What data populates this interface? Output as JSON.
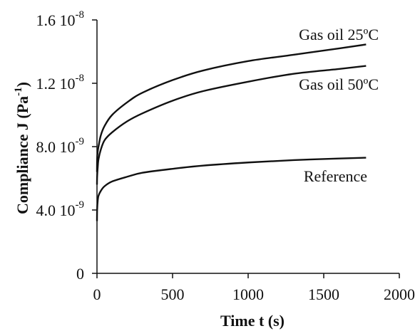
{
  "chart_data": {
    "type": "line",
    "title": "",
    "xlabel": "Time t (s)",
    "ylabel": "Compliance J (Pa-1)",
    "ylabel_parts": {
      "main": "Compliance J (Pa",
      "sup": "-1",
      "close": ")"
    },
    "xlim": [
      0,
      2000
    ],
    "ylim": [
      0,
      1.6e-08
    ],
    "x_ticks": [
      {
        "value": 0,
        "label": "0"
      },
      {
        "value": 500,
        "label": "500"
      },
      {
        "value": 1000,
        "label": "1000"
      },
      {
        "value": 1500,
        "label": "1500"
      },
      {
        "value": 2000,
        "label": "2000"
      }
    ],
    "y_ticks": [
      {
        "value": 0,
        "mant": "0",
        "exp": ""
      },
      {
        "value": 4e-09,
        "mant": "4.0 10",
        "exp": "-9"
      },
      {
        "value": 8e-09,
        "mant": "8.0 10",
        "exp": "-9"
      },
      {
        "value": 1.2e-08,
        "mant": "1.2 10",
        "exp": "-8"
      },
      {
        "value": 1.6e-08,
        "mant": "1.6 10",
        "exp": "-8"
      }
    ],
    "grid": false,
    "legend": "none",
    "series": [
      {
        "name": "Gas oil 25ºC",
        "x": [
          0,
          1,
          5,
          10,
          25,
          50,
          100,
          200,
          300,
          500,
          700,
          1000,
          1300,
          1600,
          1780
        ],
        "values": [
          6.4e-09,
          7.2e-09,
          7.7e-09,
          8e-09,
          8.7e-09,
          9.3e-09,
          1e-08,
          1.08e-08,
          1.14e-08,
          1.22e-08,
          1.28e-08,
          1.34e-08,
          1.38e-08,
          1.42e-08,
          1.445e-08
        ]
      },
      {
        "name": "Gas oil 50ºC",
        "x": [
          0,
          1,
          5,
          10,
          25,
          50,
          100,
          200,
          300,
          500,
          700,
          1000,
          1300,
          1600,
          1780
        ],
        "values": [
          5.6e-09,
          6.1e-09,
          6.7e-09,
          7.2e-09,
          7.8e-09,
          8.4e-09,
          8.9e-09,
          9.6e-09,
          1.01e-08,
          1.09e-08,
          1.15e-08,
          1.21e-08,
          1.26e-08,
          1.29e-08,
          1.31e-08
        ]
      },
      {
        "name": "Reference",
        "x": [
          0,
          1,
          5,
          10,
          25,
          50,
          100,
          200,
          300,
          500,
          700,
          1000,
          1300,
          1600,
          1780
        ],
        "values": [
          3.3e-09,
          4e-09,
          4.6e-09,
          4.9e-09,
          5.2e-09,
          5.5e-09,
          5.8e-09,
          6.1e-09,
          6.35e-09,
          6.6e-09,
          6.8e-09,
          7e-09,
          7.15e-09,
          7.25e-09,
          7.3e-09
        ]
      }
    ]
  }
}
